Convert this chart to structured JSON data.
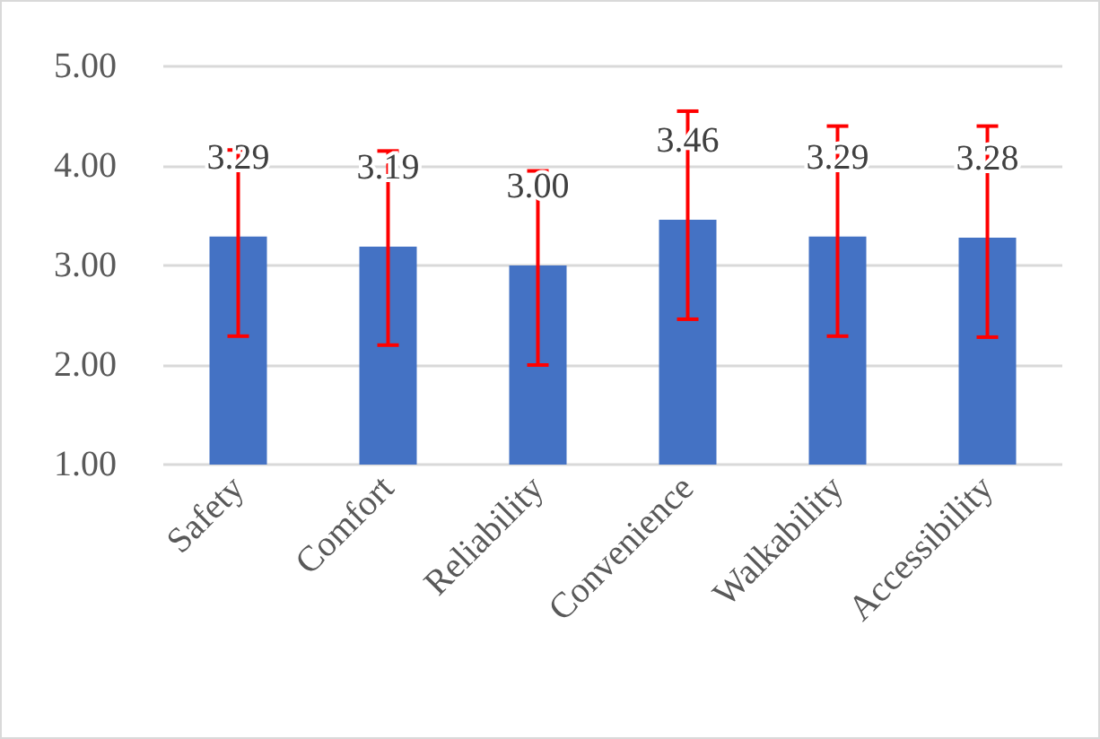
{
  "chart_data": {
    "type": "bar",
    "categories": [
      "Safety",
      "Comfort",
      "Reliability",
      "Convenience",
      "Walkability",
      "Accessibility"
    ],
    "values": [
      3.29,
      3.19,
      3.0,
      3.46,
      3.29,
      3.28
    ],
    "color": "#4472c4",
    "errors": [
      [
        2.29,
        4.16
      ],
      [
        2.2,
        4.15
      ],
      [
        2.0,
        3.95
      ],
      [
        2.46,
        4.55
      ],
      [
        2.29,
        4.4
      ],
      [
        2.28,
        4.4
      ]
    ],
    "value_labels": [
      "3.29",
      "3.19",
      "3.00",
      "3.46",
      "3.29",
      "3.28"
    ],
    "ylim": [
      1,
      5
    ],
    "yticks": [
      {
        "value": 1,
        "label": "1.00"
      },
      {
        "value": 2,
        "label": "2.00"
      },
      {
        "value": 3,
        "label": "3.00"
      },
      {
        "value": 4,
        "label": "4.00"
      },
      {
        "value": 5,
        "label": "5.00"
      }
    ],
    "grid": "y"
  }
}
